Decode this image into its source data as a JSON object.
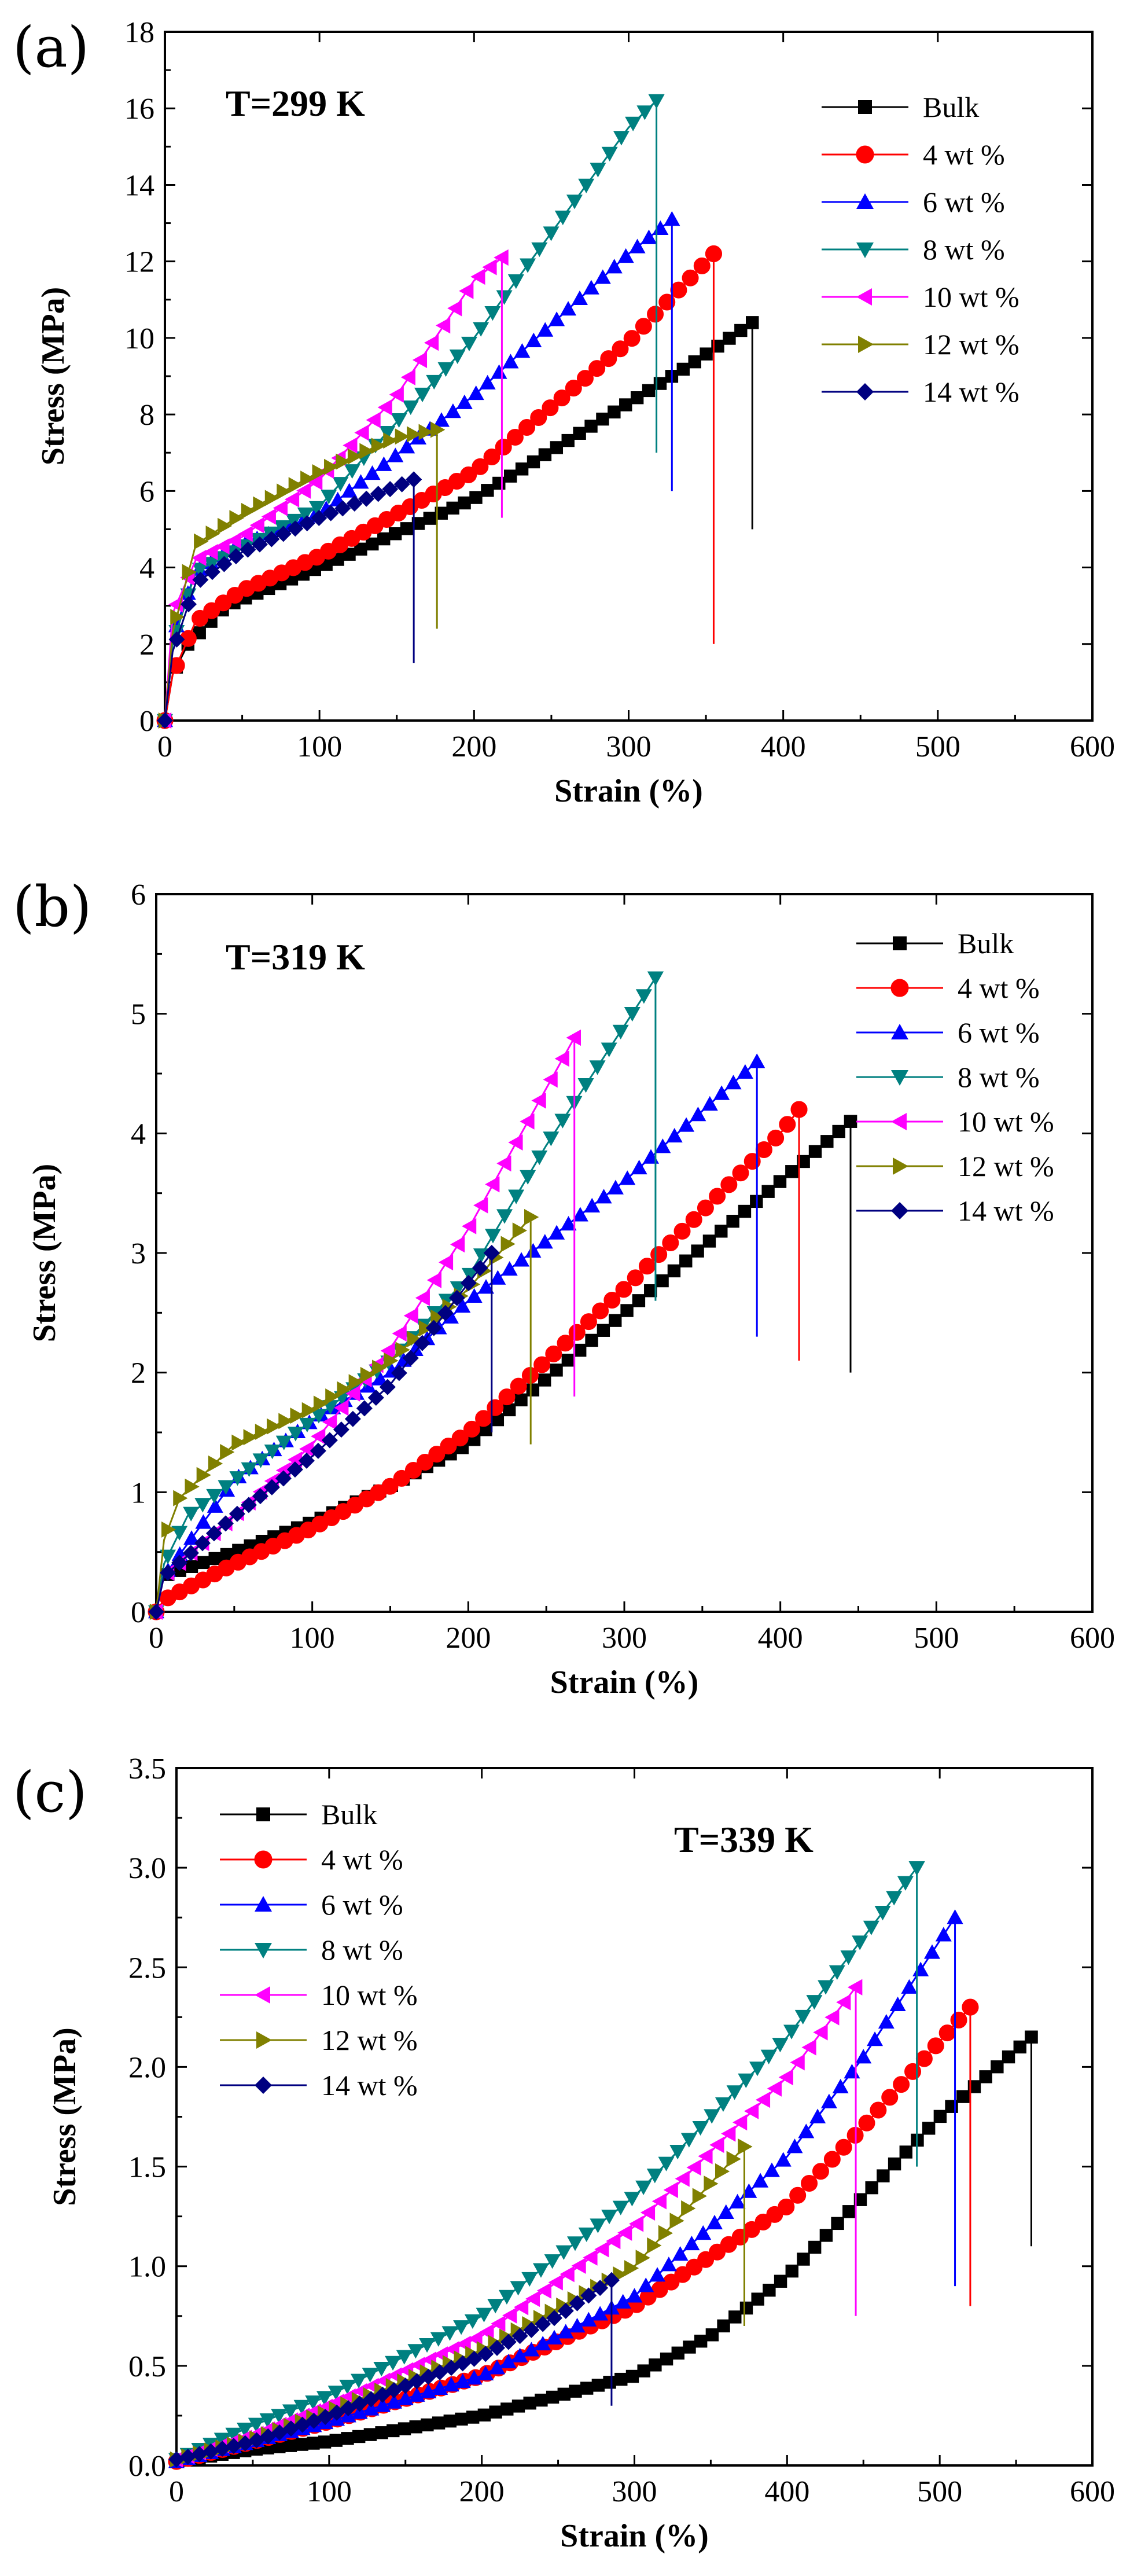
{
  "figure": {
    "panels": [
      "(a)",
      "(b)",
      "(c)"
    ]
  },
  "chart_data": [
    {
      "panel": "(a)",
      "type": "line",
      "annotation": "T=299 K",
      "xlabel": "Strain (%)",
      "ylabel": "Stress (MPa)",
      "xlim": [
        0,
        600
      ],
      "ylim": [
        0,
        18
      ],
      "xticks": [
        0,
        100,
        200,
        300,
        400,
        500,
        600
      ],
      "yticks": [
        0,
        2,
        4,
        6,
        8,
        10,
        12,
        14,
        16,
        18
      ],
      "legend_position": "top-right",
      "series": [
        {
          "name": "Bulk",
          "color": "#000000",
          "marker": "square",
          "x": [
            0,
            5,
            15,
            40,
            100,
            200,
            300,
            340,
            380
          ],
          "y": [
            0,
            1.2,
            2.0,
            3.0,
            4.0,
            5.8,
            8.3,
            9.3,
            10.4
          ],
          "break_to": 5.0
        },
        {
          "name": "4 wt %",
          "color": "#ff0000",
          "marker": "circle",
          "x": [
            0,
            5,
            20,
            50,
            100,
            200,
            300,
            355
          ],
          "y": [
            0,
            1.2,
            2.6,
            3.4,
            4.3,
            6.5,
            9.9,
            12.2
          ],
          "break_to": 2.0
        },
        {
          "name": "6 wt %",
          "color": "#0000ff",
          "marker": "triangle-up",
          "x": [
            0,
            5,
            20,
            50,
            100,
            200,
            300,
            328
          ],
          "y": [
            0,
            2.2,
            3.9,
            4.6,
            5.4,
            8.5,
            12.2,
            13.1
          ],
          "break_to": 6.0
        },
        {
          "name": "8 wt %",
          "color": "#008080",
          "marker": "triangle-down",
          "x": [
            0,
            5,
            20,
            50,
            100,
            200,
            300,
            318
          ],
          "y": [
            0,
            2.0,
            3.9,
            4.5,
            5.6,
            10.0,
            15.5,
            16.2
          ],
          "break_to": 7.0
        },
        {
          "name": "10 wt %",
          "color": "#ff00ff",
          "marker": "triangle-left",
          "x": [
            0,
            5,
            20,
            50,
            100,
            150,
            200,
            218
          ],
          "y": [
            0,
            2.8,
            4.2,
            4.8,
            6.3,
            8.5,
            11.5,
            12.1
          ],
          "break_to": 5.3
        },
        {
          "name": "12 wt %",
          "color": "#808000",
          "marker": "triangle-right",
          "x": [
            0,
            5,
            20,
            50,
            100,
            150,
            176
          ],
          "y": [
            0,
            2.3,
            4.6,
            5.4,
            6.5,
            7.4,
            7.6
          ],
          "break_to": 2.4
        },
        {
          "name": "14 wt %",
          "color": "#000080",
          "marker": "diamond",
          "x": [
            0,
            5,
            20,
            50,
            100,
            161
          ],
          "y": [
            0,
            1.8,
            3.6,
            4.4,
            5.3,
            6.3
          ],
          "break_to": 1.5
        }
      ]
    },
    {
      "panel": "(b)",
      "type": "line",
      "annotation": "T=319 K",
      "xlabel": "Strain (%)",
      "ylabel": "Stress (MPa)",
      "xlim": [
        0,
        600
      ],
      "ylim": [
        0,
        6
      ],
      "xticks": [
        0,
        100,
        200,
        300,
        400,
        500,
        600
      ],
      "yticks": [
        0,
        1,
        2,
        3,
        4,
        5,
        6
      ],
      "legend_position": "top-right",
      "series": [
        {
          "name": "Bulk",
          "color": "#000000",
          "marker": "square",
          "x": [
            0,
            5,
            50,
            100,
            150,
            200,
            300,
            400,
            445
          ],
          "y": [
            0,
            0.3,
            0.5,
            0.75,
            1.05,
            1.4,
            2.5,
            3.6,
            4.1
          ],
          "break_to": 2.0
        },
        {
          "name": "4 wt %",
          "color": "#ff0000",
          "marker": "circle",
          "x": [
            0,
            5,
            50,
            100,
            150,
            200,
            300,
            400,
            412
          ],
          "y": [
            0,
            0.1,
            0.4,
            0.7,
            1.05,
            1.5,
            2.7,
            4.0,
            4.2
          ],
          "break_to": 2.1
        },
        {
          "name": "6 wt %",
          "color": "#0000ff",
          "marker": "triangle-up",
          "x": [
            0,
            5,
            50,
            100,
            150,
            200,
            300,
            385
          ],
          "y": [
            0,
            0.3,
            1.1,
            1.6,
            2.0,
            2.6,
            3.6,
            4.6
          ],
          "break_to": 2.3
        },
        {
          "name": "8 wt %",
          "color": "#008080",
          "marker": "triangle-down",
          "x": [
            0,
            5,
            20,
            50,
            100,
            150,
            200,
            250,
            320
          ],
          "y": [
            0,
            0.4,
            0.8,
            1.1,
            1.6,
            2.1,
            2.8,
            3.9,
            5.3
          ],
          "break_to": 2.6
        },
        {
          "name": "10 wt %",
          "color": "#ff00ff",
          "marker": "triangle-left",
          "x": [
            0,
            5,
            50,
            100,
            150,
            200,
            268
          ],
          "y": [
            0,
            0.3,
            0.8,
            1.4,
            2.2,
            3.2,
            4.8
          ],
          "break_to": 1.8
        },
        {
          "name": "12 wt %",
          "color": "#808000",
          "marker": "triangle-right",
          "x": [
            0,
            5,
            15,
            50,
            100,
            150,
            200,
            240
          ],
          "y": [
            0,
            0.6,
            0.95,
            1.4,
            1.7,
            2.1,
            2.7,
            3.3
          ],
          "break_to": 1.4
        },
        {
          "name": "14 wt %",
          "color": "#000080",
          "marker": "diamond",
          "x": [
            0,
            5,
            50,
            100,
            150,
            215
          ],
          "y": [
            0,
            0.3,
            0.8,
            1.3,
            1.9,
            3.0
          ],
          "break_to": 1.5
        }
      ]
    },
    {
      "panel": "(c)",
      "type": "line",
      "annotation": "T=339 K",
      "xlabel": "Strain (%)",
      "ylabel": "Stress (MPa)",
      "xlim": [
        0,
        600
      ],
      "ylim": [
        0.0,
        3.5
      ],
      "xticks": [
        0,
        100,
        200,
        300,
        400,
        500,
        600
      ],
      "yticks": [
        "0.0",
        "0.5",
        "1.0",
        "1.5",
        "2.0",
        "2.5",
        "3.0",
        "3.5"
      ],
      "legend_position": "top-left",
      "series": [
        {
          "name": "Bulk",
          "color": "#000000",
          "marker": "square",
          "x": [
            0,
            50,
            100,
            200,
            300,
            350,
            400,
            450,
            500,
            560
          ],
          "y": [
            0.02,
            0.08,
            0.12,
            0.25,
            0.45,
            0.65,
            0.95,
            1.35,
            1.75,
            2.15
          ],
          "break_to": 1.1
        },
        {
          "name": "4 wt %",
          "color": "#ff0000",
          "marker": "circle",
          "x": [
            0,
            50,
            100,
            200,
            300,
            400,
            450,
            520
          ],
          "y": [
            0.02,
            0.12,
            0.22,
            0.45,
            0.8,
            1.3,
            1.7,
            2.3
          ],
          "break_to": 0.8
        },
        {
          "name": "6 wt %",
          "color": "#0000ff",
          "marker": "triangle-up",
          "x": [
            0,
            50,
            100,
            200,
            300,
            400,
            450,
            510
          ],
          "y": [
            0.02,
            0.12,
            0.22,
            0.45,
            0.85,
            1.55,
            2.05,
            2.75
          ],
          "break_to": 0.9
        },
        {
          "name": "8 wt %",
          "color": "#008080",
          "marker": "triangle-down",
          "x": [
            0,
            50,
            100,
            200,
            300,
            400,
            485
          ],
          "y": [
            0.03,
            0.2,
            0.35,
            0.75,
            1.35,
            2.15,
            3.0
          ],
          "break_to": 1.5
        },
        {
          "name": "10 wt %",
          "color": "#ff00ff",
          "marker": "triangle-left",
          "x": [
            0,
            50,
            100,
            200,
            300,
            400,
            445
          ],
          "y": [
            0.03,
            0.15,
            0.3,
            0.65,
            1.2,
            1.95,
            2.4
          ],
          "break_to": 0.75
        },
        {
          "name": "12 wt %",
          "color": "#808000",
          "marker": "triangle-right",
          "x": [
            0,
            50,
            100,
            200,
            300,
            372
          ],
          "y": [
            0.03,
            0.13,
            0.27,
            0.58,
            1.0,
            1.6
          ],
          "break_to": 0.7
        },
        {
          "name": "14 wt %",
          "color": "#000080",
          "marker": "diamond",
          "x": [
            0,
            50,
            100,
            150,
            200,
            250,
            285
          ],
          "y": [
            0.03,
            0.12,
            0.25,
            0.4,
            0.55,
            0.75,
            0.93
          ],
          "break_to": 0.3
        }
      ]
    }
  ]
}
